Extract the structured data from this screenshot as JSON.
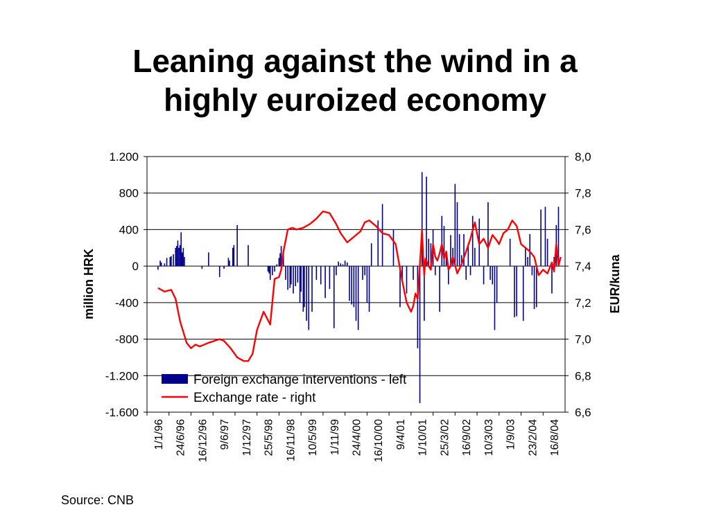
{
  "slide": {
    "title_line1": "Leaning against the wind in a",
    "title_line2": "highly euroized economy",
    "source": "Source: CNB"
  },
  "chart_data": {
    "type": "bar+line",
    "y_left": {
      "label": "million HRK",
      "range": [
        -1600,
        1200
      ],
      "ticks": [
        1200,
        800,
        400,
        0,
        -400,
        -800,
        -1200,
        -1600
      ],
      "tick_labels": [
        "1.200",
        "800",
        "400",
        "0",
        "-400",
        "-800",
        "-1.200",
        "-1.600"
      ]
    },
    "y_right": {
      "label": "EUR/kuna",
      "range": [
        6.6,
        8.0
      ],
      "ticks": [
        8.0,
        7.8,
        7.6,
        7.4,
        7.2,
        7.0,
        6.8,
        6.6
      ],
      "tick_labels": [
        "8,0",
        "7,8",
        "7,6",
        "7,4",
        "7,2",
        "7,0",
        "6,8",
        "6,6"
      ]
    },
    "x_axis": {
      "categories": [
        "1/1/96",
        "24/6/96",
        "16/12/96",
        "9/6/97",
        "1/12/97",
        "25/5/98",
        "16/11/98",
        "10/5/99",
        "1/11/99",
        "24/4/00",
        "16/10/00",
        "9/4/01",
        "1/10/01",
        "25/3/02",
        "16/9/02",
        "10/3/03",
        "1/9/03",
        "23/2/04",
        "16/8/04"
      ]
    },
    "grid": "horizontal",
    "legend": {
      "placement": "bottom-center",
      "entries": [
        {
          "label": "Foreign exchange interventions - left",
          "color": "#00008b",
          "kind": "bar"
        },
        {
          "label": "Exchange rate - right",
          "color": "#ff0000",
          "kind": "line"
        }
      ]
    },
    "series": [
      {
        "name": "Foreign exchange interventions - left",
        "axis": "left",
        "color": "#00008b",
        "x": [
          0.0,
          0.1,
          0.15,
          0.3,
          0.4,
          0.55,
          0.6,
          0.7,
          0.8,
          0.85,
          0.9,
          0.95,
          1.0,
          1.05,
          1.1,
          1.15,
          1.2,
          2.0,
          2.3,
          2.8,
          3.0,
          3.2,
          3.25,
          3.4,
          3.45,
          3.6,
          4.1,
          5.0,
          5.05,
          5.1,
          5.2,
          5.3,
          5.4,
          5.5,
          5.55,
          5.6,
          5.7,
          5.8,
          5.9,
          6.0,
          6.05,
          6.15,
          6.25,
          6.35,
          6.45,
          6.5,
          6.6,
          6.65,
          6.75,
          6.85,
          7.0,
          7.2,
          7.4,
          7.6,
          7.8,
          8.0,
          8.1,
          8.2,
          8.3,
          8.4,
          8.5,
          8.6,
          8.7,
          8.8,
          8.9,
          9.0,
          9.1,
          9.3,
          9.4,
          9.5,
          9.6,
          9.7,
          10.0,
          10.2,
          10.7,
          11.0,
          11.1,
          11.3,
          11.6,
          11.8,
          11.9,
          12.0,
          12.1,
          12.2,
          12.3,
          12.4,
          12.5,
          12.6,
          12.8,
          12.9,
          13.0,
          13.1,
          13.2,
          13.3,
          13.4,
          13.5,
          13.6,
          13.7,
          13.8,
          13.9,
          14.0,
          14.1,
          14.2,
          14.3,
          14.4,
          14.6,
          14.8,
          15.0,
          15.1,
          15.2,
          15.3,
          15.4,
          16.0,
          16.2,
          16.3,
          16.6,
          16.7,
          16.8,
          16.9,
          17.0,
          17.1,
          17.2,
          17.4,
          17.6,
          17.7,
          17.9,
          18.0,
          18.1,
          18.2
        ],
        "values": [
          -40,
          60,
          40,
          30,
          90,
          100,
          110,
          130,
          200,
          220,
          280,
          200,
          230,
          370,
          150,
          200,
          100,
          -30,
          150,
          -120,
          -30,
          90,
          60,
          200,
          230,
          450,
          230,
          -60,
          -80,
          -150,
          -100,
          -60,
          20,
          90,
          140,
          220,
          180,
          -150,
          -260,
          -240,
          -200,
          -300,
          -220,
          -180,
          -400,
          -280,
          -500,
          -450,
          -600,
          -700,
          -500,
          -150,
          -200,
          -350,
          -250,
          -680,
          -100,
          50,
          30,
          20,
          60,
          40,
          -380,
          -420,
          -450,
          -600,
          -700,
          -150,
          -100,
          -400,
          -500,
          250,
          500,
          680,
          400,
          -450,
          -150,
          -300,
          -150,
          -900,
          -1500,
          1030,
          -600,
          980,
          300,
          250,
          400,
          -100,
          -500,
          550,
          440,
          150,
          -200,
          340,
          200,
          900,
          700,
          350,
          120,
          350,
          -150,
          250,
          -100,
          550,
          200,
          520,
          -200,
          700,
          -150,
          -200,
          -700,
          -400,
          300,
          -560,
          -550,
          -600,
          200,
          100,
          350,
          -100,
          -470,
          -450,
          620,
          650,
          300,
          -300,
          100,
          450,
          650
        ]
      },
      {
        "name": "Exchange rate - right",
        "axis": "right",
        "color": "#ff0000",
        "x": [
          0,
          0.3,
          0.6,
          0.8,
          1.0,
          1.3,
          1.5,
          1.7,
          1.9,
          2.3,
          2.8,
          3.0,
          3.3,
          3.6,
          3.9,
          4.1,
          4.3,
          4.5,
          4.8,
          5.1,
          5.3,
          5.5,
          5.6,
          5.7,
          5.9,
          6.1,
          6.3,
          6.6,
          6.9,
          7.2,
          7.5,
          7.8,
          8.1,
          8.3,
          8.6,
          8.9,
          9.2,
          9.4,
          9.6,
          9.9,
          10.2,
          10.5,
          10.8,
          11.1,
          11.3,
          11.5,
          11.6,
          11.7,
          11.8,
          11.9,
          11.95,
          12.0,
          12.05,
          12.1,
          12.15,
          12.2,
          12.3,
          12.4,
          12.5,
          12.6,
          12.7,
          12.8,
          12.9,
          13.0,
          13.1,
          13.2,
          13.3,
          13.4,
          13.6,
          13.8,
          14.0,
          14.2,
          14.4,
          14.6,
          14.8,
          15.0,
          15.2,
          15.4,
          15.5,
          15.7,
          15.9,
          16.1,
          16.3,
          16.5,
          16.7,
          16.9,
          17.1,
          17.2,
          17.3,
          17.5,
          17.7,
          17.9,
          18.0,
          18.1,
          18.2,
          18.3
        ],
        "values": [
          7.28,
          7.26,
          7.27,
          7.22,
          7.1,
          6.98,
          6.95,
          6.97,
          6.96,
          6.98,
          7.0,
          6.99,
          6.95,
          6.9,
          6.88,
          6.88,
          6.92,
          7.05,
          7.15,
          7.08,
          7.33,
          7.34,
          7.38,
          7.48,
          7.6,
          7.61,
          7.6,
          7.61,
          7.63,
          7.66,
          7.7,
          7.69,
          7.63,
          7.58,
          7.53,
          7.56,
          7.59,
          7.64,
          7.65,
          7.62,
          7.58,
          7.57,
          7.52,
          7.32,
          7.2,
          7.15,
          7.18,
          7.25,
          7.22,
          7.4,
          7.5,
          7.6,
          7.45,
          7.35,
          7.44,
          7.43,
          7.4,
          7.38,
          7.52,
          7.45,
          7.43,
          7.47,
          7.52,
          7.44,
          7.48,
          7.38,
          7.4,
          7.45,
          7.36,
          7.41,
          7.48,
          7.55,
          7.64,
          7.52,
          7.55,
          7.5,
          7.57,
          7.54,
          7.52,
          7.58,
          7.6,
          7.65,
          7.62,
          7.52,
          7.5,
          7.48,
          7.45,
          7.4,
          7.35,
          7.38,
          7.36,
          7.42,
          7.37,
          7.52,
          7.4,
          7.45
        ]
      }
    ]
  }
}
